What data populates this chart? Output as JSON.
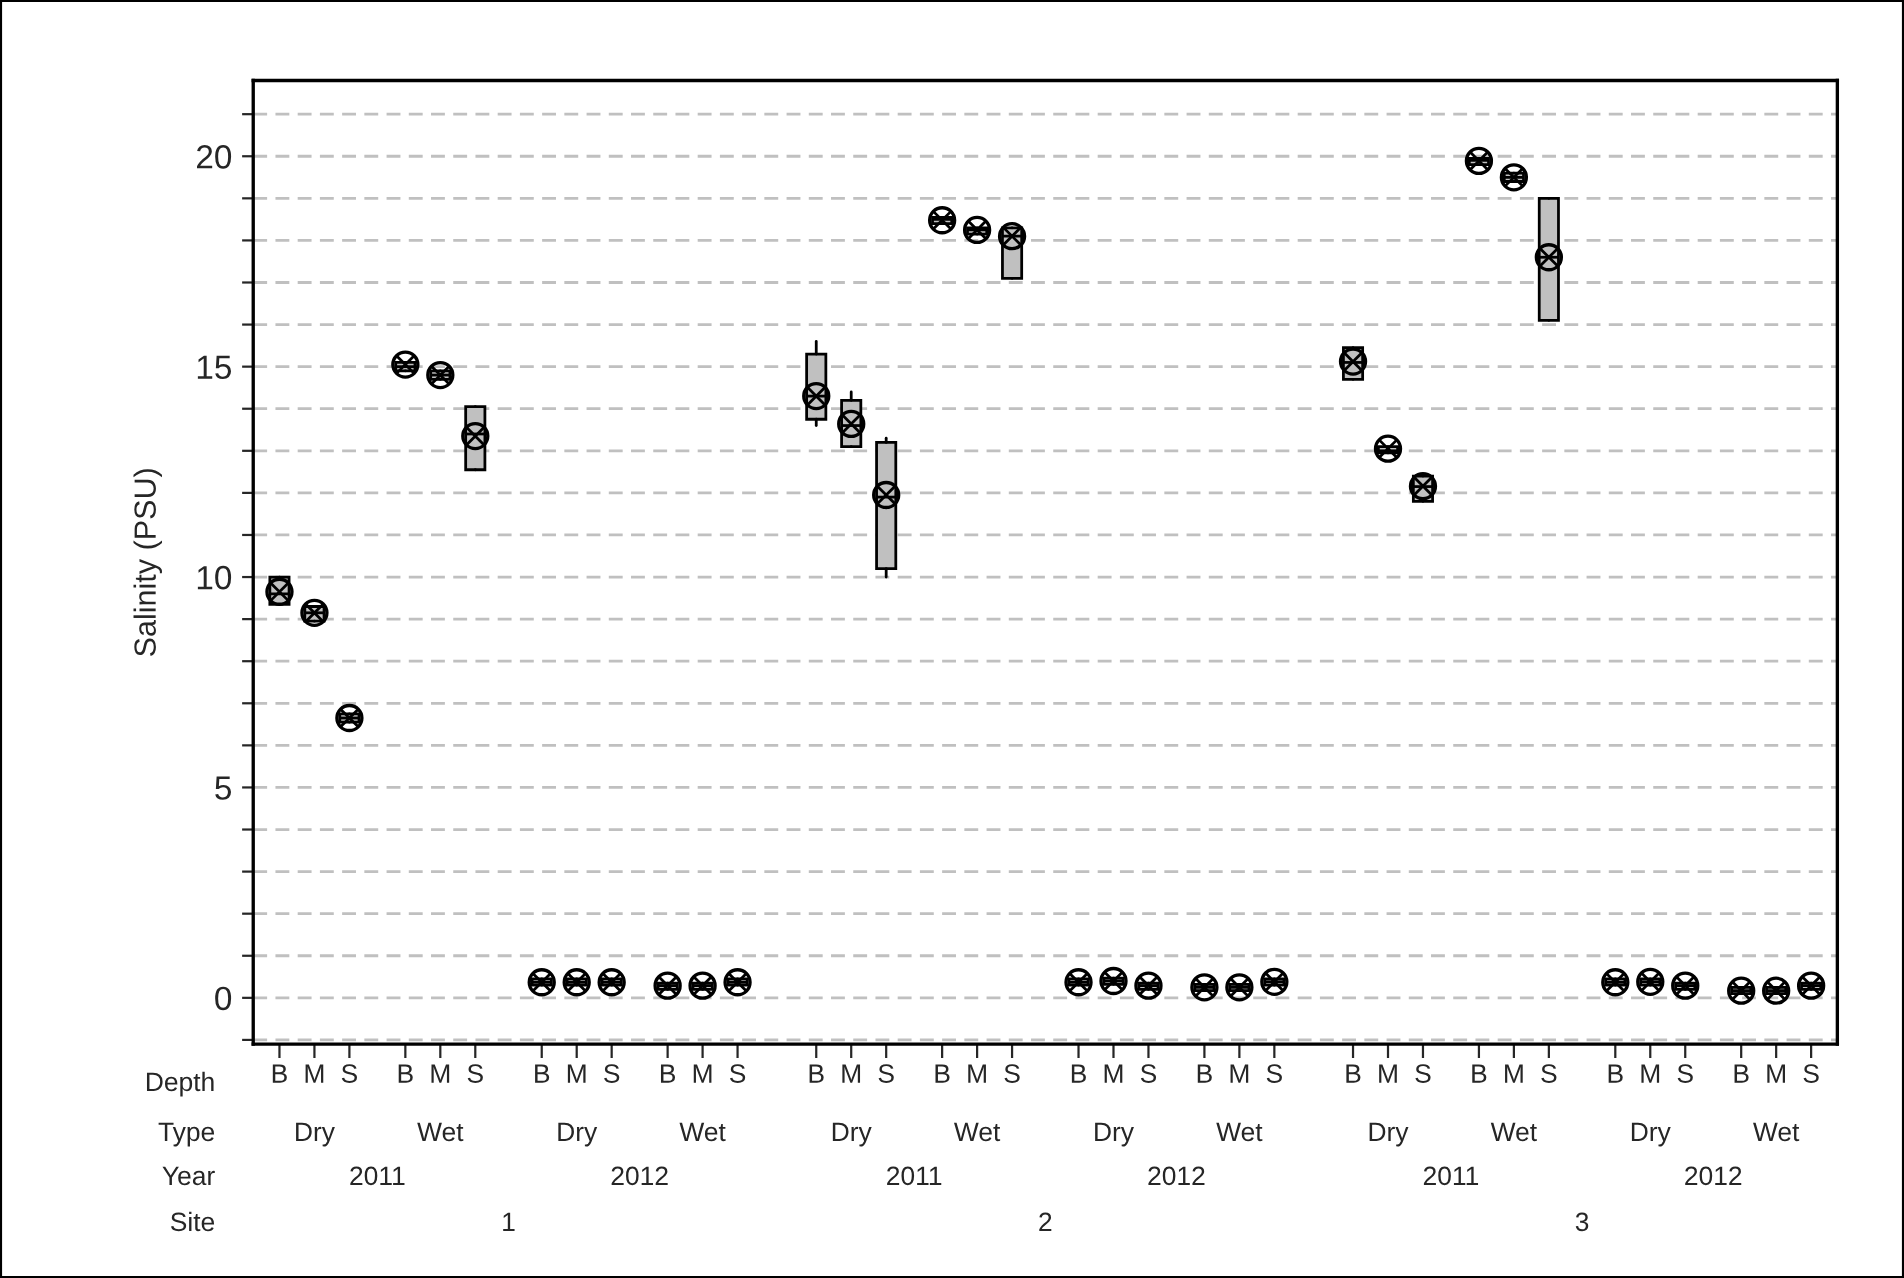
{
  "chart_data": {
    "type": "box",
    "ylabel": "Salinity (PSU)",
    "categories": [
      "B",
      "M",
      "S",
      "B",
      "M",
      "S",
      "B",
      "M",
      "S",
      "B",
      "M",
      "S",
      "B",
      "M",
      "S",
      "B",
      "M",
      "S",
      "B",
      "M",
      "S",
      "B",
      "M",
      "S",
      "B",
      "M",
      "S",
      "B",
      "M",
      "S",
      "B",
      "M",
      "S",
      "B",
      "M",
      "S"
    ],
    "annotations": [
      "Depth",
      "Type",
      "Year",
      "Site",
      "Dry",
      "Wet",
      "Dry",
      "Wet",
      "Dry",
      "Wet",
      "Dry",
      "Wet",
      "Dry",
      "Wet",
      "Dry",
      "Wet",
      "2011",
      "2012",
      "2011",
      "2012",
      "2011",
      "2012",
      "1",
      "2",
      "3"
    ],
    "series": [
      {
        "color": "#c0c0c0",
        "boxes": [
          {
            "low": 9.35,
            "q1": 9.35,
            "median": 9.6,
            "q3": 10.0,
            "high": 10.0,
            "mean": 9.65
          },
          {
            "low": 8.95,
            "q1": 8.95,
            "median": 9.15,
            "q3": 9.3,
            "high": 9.3,
            "mean": 9.15
          },
          {
            "low": 6.55,
            "q1": 6.55,
            "median": 6.65,
            "q3": 6.75,
            "high": 6.75,
            "mean": 6.65
          },
          {
            "low": 14.9,
            "q1": 14.9,
            "median": 15.0,
            "q3": 15.1,
            "high": 15.1,
            "mean": 15.05
          },
          {
            "low": 14.7,
            "q1": 14.7,
            "median": 14.8,
            "q3": 14.9,
            "high": 14.9,
            "mean": 14.8
          },
          {
            "low": 12.55,
            "q1": 12.55,
            "median": 13.4,
            "q3": 14.05,
            "high": 14.05,
            "mean": 13.35
          },
          {
            "low": 0.3,
            "q1": 0.3,
            "median": 0.37,
            "q3": 0.45,
            "high": 0.45,
            "mean": 0.37
          },
          {
            "low": 0.3,
            "q1": 0.3,
            "median": 0.37,
            "q3": 0.45,
            "high": 0.45,
            "mean": 0.37
          },
          {
            "low": 0.3,
            "q1": 0.3,
            "median": 0.37,
            "q3": 0.45,
            "high": 0.45,
            "mean": 0.37
          },
          {
            "low": 0.2,
            "q1": 0.2,
            "median": 0.29,
            "q3": 0.35,
            "high": 0.35,
            "mean": 0.29
          },
          {
            "low": 0.2,
            "q1": 0.2,
            "median": 0.29,
            "q3": 0.35,
            "high": 0.35,
            "mean": 0.29
          },
          {
            "low": 0.3,
            "q1": 0.3,
            "median": 0.37,
            "q3": 0.45,
            "high": 0.45,
            "mean": 0.37
          },
          {
            "low": 13.6,
            "q1": 13.75,
            "median": 14.3,
            "q3": 15.3,
            "high": 15.6,
            "mean": 14.3
          },
          {
            "low": 13.1,
            "q1": 13.1,
            "median": 13.6,
            "q3": 14.2,
            "high": 14.4,
            "mean": 13.64
          },
          {
            "low": 10.0,
            "q1": 10.2,
            "median": 11.9,
            "q3": 13.2,
            "high": 13.3,
            "mean": 11.95
          },
          {
            "low": 18.4,
            "q1": 18.4,
            "median": 18.5,
            "q3": 18.55,
            "high": 18.55,
            "mean": 18.48
          },
          {
            "low": 18.15,
            "q1": 18.15,
            "median": 18.25,
            "q3": 18.3,
            "high": 18.3,
            "mean": 18.25
          },
          {
            "low": 17.1,
            "q1": 17.1,
            "median": 18.1,
            "q3": 18.3,
            "high": 18.3,
            "mean": 18.1
          },
          {
            "low": 0.3,
            "q1": 0.3,
            "median": 0.37,
            "q3": 0.45,
            "high": 0.45,
            "mean": 0.37
          },
          {
            "low": 0.32,
            "q1": 0.32,
            "median": 0.4,
            "q3": 0.47,
            "high": 0.47,
            "mean": 0.4
          },
          {
            "low": 0.2,
            "q1": 0.2,
            "median": 0.29,
            "q3": 0.35,
            "high": 0.35,
            "mean": 0.29
          },
          {
            "low": 0.17,
            "q1": 0.17,
            "median": 0.25,
            "q3": 0.32,
            "high": 0.32,
            "mean": 0.25
          },
          {
            "low": 0.17,
            "q1": 0.17,
            "median": 0.25,
            "q3": 0.32,
            "high": 0.32,
            "mean": 0.25
          },
          {
            "low": 0.3,
            "q1": 0.3,
            "median": 0.38,
            "q3": 0.45,
            "high": 0.45,
            "mean": 0.38
          },
          {
            "low": 14.7,
            "q1": 14.7,
            "median": 15.1,
            "q3": 15.45,
            "high": 15.45,
            "mean": 15.12
          },
          {
            "low": 12.95,
            "q1": 12.95,
            "median": 13.0,
            "q3": 13.1,
            "high": 13.1,
            "mean": 13.05
          },
          {
            "low": 11.8,
            "q1": 11.8,
            "median": 12.15,
            "q3": 12.4,
            "high": 12.4,
            "mean": 12.16
          },
          {
            "low": 19.8,
            "q1": 19.8,
            "median": 19.9,
            "q3": 19.95,
            "high": 19.95,
            "mean": 19.89
          },
          {
            "low": 19.4,
            "q1": 19.4,
            "median": 19.5,
            "q3": 19.6,
            "high": 19.6,
            "mean": 19.5
          },
          {
            "low": 16.1,
            "q1": 16.1,
            "median": 17.6,
            "q3": 19.0,
            "high": 19.0,
            "mean": 17.6
          },
          {
            "low": 0.3,
            "q1": 0.3,
            "median": 0.37,
            "q3": 0.45,
            "high": 0.45,
            "mean": 0.37
          },
          {
            "low": 0.3,
            "q1": 0.3,
            "median": 0.38,
            "q3": 0.45,
            "high": 0.45,
            "mean": 0.38
          },
          {
            "low": 0.2,
            "q1": 0.2,
            "median": 0.29,
            "q3": 0.35,
            "high": 0.35,
            "mean": 0.29
          },
          {
            "low": 0.1,
            "q1": 0.1,
            "median": 0.17,
            "q3": 0.25,
            "high": 0.25,
            "mean": 0.17
          },
          {
            "low": 0.1,
            "q1": 0.1,
            "median": 0.17,
            "q3": 0.25,
            "high": 0.25,
            "mean": 0.17
          },
          {
            "low": 0.2,
            "q1": 0.2,
            "median": 0.29,
            "q3": 0.35,
            "high": 0.35,
            "mean": 0.29
          }
        ]
      }
    ],
    "ylim": [
      -1.1,
      21.8
    ],
    "yticks": [
      {
        "value": -1,
        "label": null
      },
      0,
      {
        "value": 1,
        "label": null
      },
      {
        "value": 2,
        "label": null
      },
      {
        "value": 3,
        "label": null
      },
      {
        "value": 4,
        "label": null
      },
      5,
      {
        "value": 6,
        "label": null
      },
      {
        "value": 7,
        "label": null
      },
      {
        "value": 8,
        "label": null
      },
      {
        "value": 9,
        "label": null
      },
      10,
      {
        "value": 11,
        "label": null
      },
      {
        "value": 12,
        "label": null
      },
      {
        "value": 13,
        "label": null
      },
      {
        "value": 14,
        "label": null
      },
      15,
      {
        "value": 16,
        "label": null
      },
      {
        "value": 17,
        "label": null
      },
      {
        "value": 18,
        "label": null
      },
      {
        "value": 19,
        "label": null
      },
      20,
      {
        "value": 21,
        "label": null
      }
    ],
    "grid": "y",
    "marker": "circle"
  }
}
